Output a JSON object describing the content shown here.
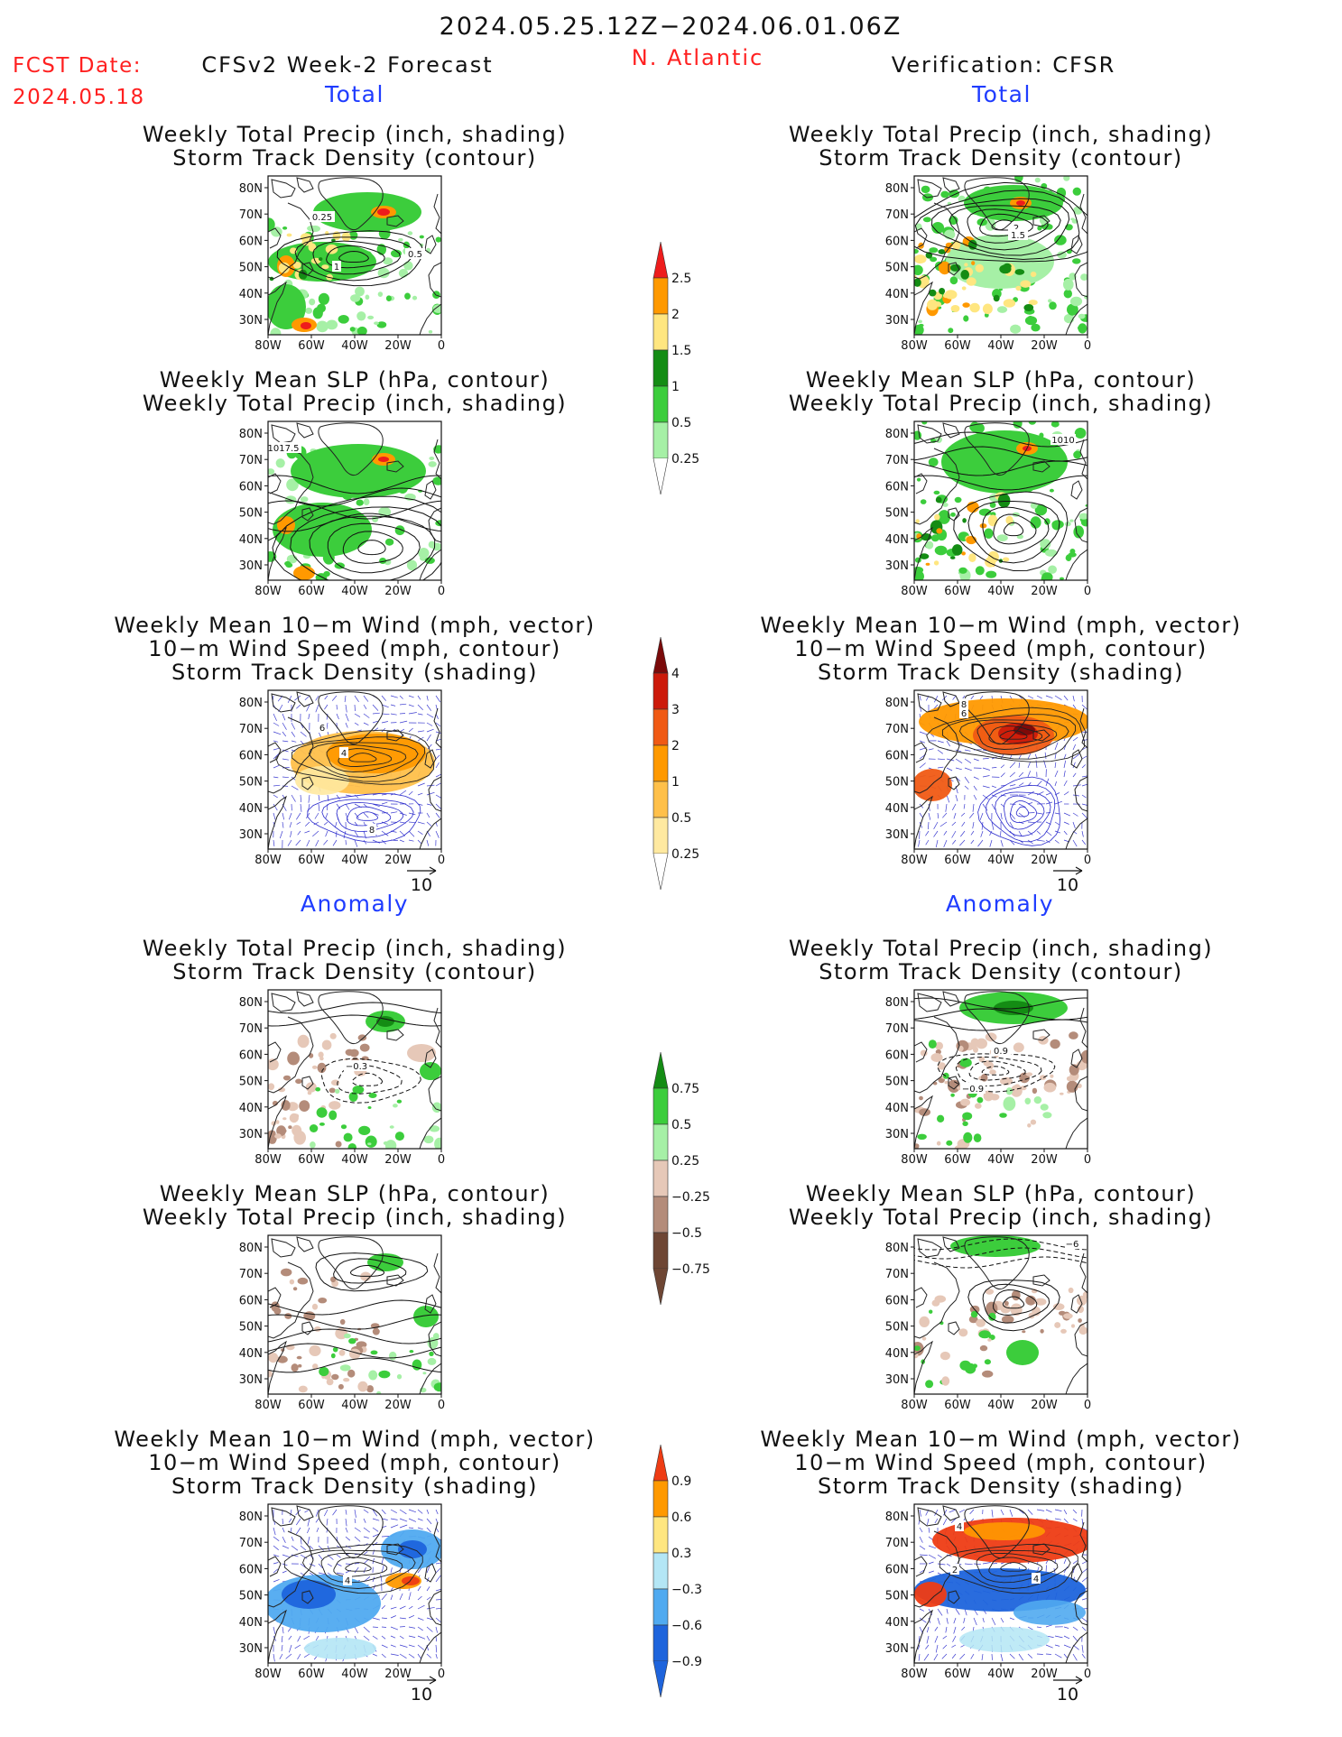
{
  "header": {
    "period": "2024.05.25.12Z−2024.06.01.06Z",
    "fcst_label": "FCST Date:",
    "fcst_date": "2024.05.18",
    "forecast_title": "CFSv2 Week-2 Forecast",
    "region": "N. Atlantic",
    "verification_title": "Verification: CFSR"
  },
  "sections": {
    "total": "Total",
    "anomaly": "Anomaly"
  },
  "panel_titles": {
    "precip_track": [
      "Weekly Total Precip (inch, shading)",
      "Storm Track Density (contour)"
    ],
    "slp_precip": [
      "Weekly Mean SLP (hPa, contour)",
      "Weekly Total Precip (inch, shading)"
    ],
    "wind": [
      "Weekly Mean 10−m Wind (mph, vector)",
      "10−m Wind Speed (mph, contour)",
      "Storm Track Density (shading)"
    ]
  },
  "axes": {
    "lat_labels": [
      "80N",
      "70N",
      "60N",
      "50N",
      "40N",
      "30N"
    ],
    "lon_labels": [
      "80W",
      "60W",
      "40W",
      "20W",
      "0"
    ]
  },
  "vector_ref": "10",
  "colorbars": {
    "precip_total": {
      "labels": [
        "2.5",
        "2",
        "1.5",
        "1",
        "0.5",
        "0.25"
      ],
      "colors": [
        "#ee1c1c",
        "#ff9900",
        "#ffe680",
        "#148c14",
        "#3ccd3c",
        "#a6f0a6"
      ]
    },
    "track_total": {
      "labels": [
        "4",
        "3",
        "2",
        "1",
        "0.5",
        "0.25"
      ],
      "colors": [
        "#7a0a0a",
        "#cc1a0a",
        "#f05a14",
        "#ff9900",
        "#ffc04a",
        "#ffe9a0"
      ]
    },
    "precip_anom": {
      "labels": [
        "0.75",
        "0.5",
        "0.25",
        "−0.25",
        "−0.5",
        "−0.75"
      ],
      "colors": [
        "#148c14",
        "#3ccd3c",
        "#a6f0a6",
        "#e6c8b8",
        "#b48c7a",
        "#6e4634"
      ]
    },
    "track_anom": {
      "labels": [
        "0.9",
        "0.6",
        "0.3",
        "−0.3",
        "−0.6",
        "−0.9"
      ],
      "colors": [
        "#ee3c14",
        "#ff9900",
        "#ffe680",
        "#b4e6f5",
        "#50aaf0",
        "#1e64dc"
      ]
    }
  },
  "contour_labels": {
    "fc_precip_track": [
      "0.25",
      "1",
      "0.5"
    ],
    "vf_precip_track": [
      "2",
      "1.5"
    ],
    "fc_slp_precip": [
      "1017.5"
    ],
    "vf_slp_precip": [
      "1010"
    ],
    "fc_wind": [
      "6",
      "4",
      "8"
    ],
    "vf_wind": [
      "8",
      "6"
    ],
    "fc_anom_precip_track": [
      "−0.3"
    ],
    "vf_anom_precip_track": [
      "0.9",
      "−0.9"
    ],
    "vf_anom_slp_precip": [
      "−6"
    ],
    "fc_anom_wind": [
      "4"
    ],
    "vf_anom_wind": [
      "4",
      "2",
      "4"
    ]
  }
}
